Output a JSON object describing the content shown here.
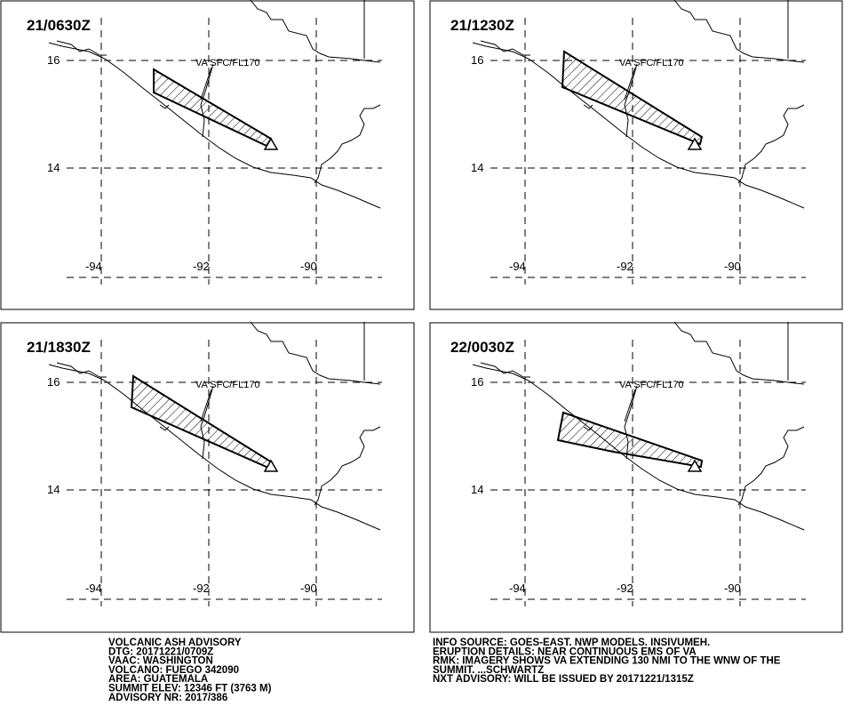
{
  "panels": [
    {
      "time": "21/0630Z",
      "label": "VA SFC/FL170"
    },
    {
      "time": "21/1230Z",
      "label": "VA SFC/FL170"
    },
    {
      "time": "21/1830Z",
      "label": "VA SFC/FL170"
    },
    {
      "time": "22/0030Z",
      "label": "VA SFC/FL170"
    }
  ],
  "lat_labels": [
    "16",
    "14"
  ],
  "lon_labels": [
    "-94",
    "-92",
    "-90"
  ],
  "advisory_left": [
    "VOLCANIC ASH ADVISORY",
    "DTG: 20171221/0709Z",
    "VAAC: WASHINGTON",
    "VOLCANO: FUEGO 342090",
    "AREA: GUATEMALA",
    "SUMMIT ELEV: 12346 FT (3763 M)",
    "ADVISORY NR: 2017/386"
  ],
  "advisory_right": [
    "INFO SOURCE: GOES-EAST. NWP MODELS. INSIVUMEH.",
    "ERUPTION DETAILS: NEAR CONTINUOUS EMS OF VA",
    "RMK: IMAGERY SHOWS VA EXTENDING 130 NMI TO THE WNW OF THE",
    "SUMMIT. ...SCHWARTZ",
    "NXT ADVISORY: WILL BE ISSUED BY 20171221/1315Z"
  ]
}
